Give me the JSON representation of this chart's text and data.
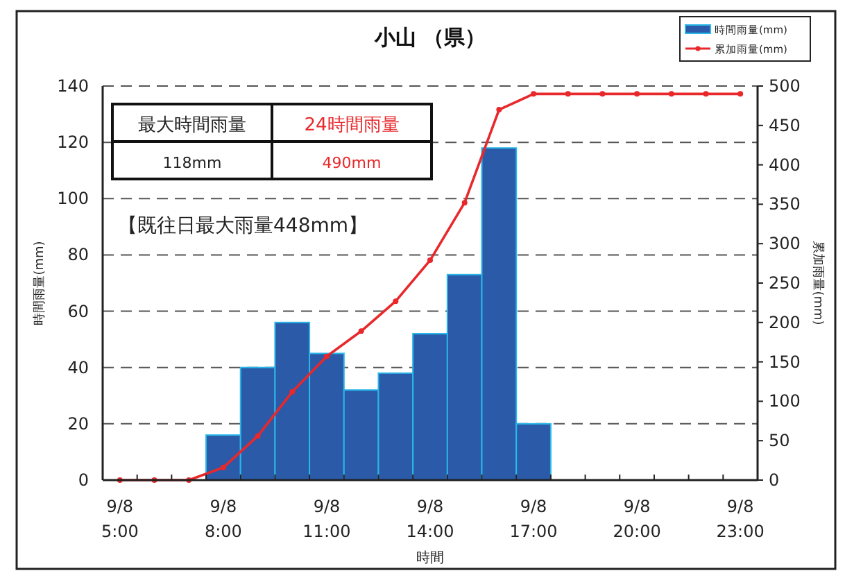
{
  "chart_data": {
    "type": "bar",
    "title": "小山 （県）",
    "xlabel": "時間",
    "ylabel": "時間雨量(mm)",
    "y2label": "累加雨量(mm)",
    "categories": [
      "9/8\n5:00",
      null,
      null,
      "9/8\n8:00",
      null,
      null,
      "9/8\n11:00",
      null,
      null,
      "9/8\n14:00",
      null,
      null,
      "9/8\n17:00",
      null,
      null,
      "9/8\n20:00",
      null,
      null,
      "9/8\n23:00"
    ],
    "series": [
      {
        "name": "時間雨量(mm)",
        "color": "#2b5aa8",
        "values": [
          0,
          0,
          0,
          16,
          40,
          56,
          45,
          32,
          38,
          52,
          73,
          118,
          20,
          0,
          0,
          0,
          0,
          0,
          0
        ]
      },
      {
        "name": "累加雨量(mm)",
        "type": "line",
        "axis": "y2",
        "color": "#e8282b",
        "marker": "circle",
        "values": [
          0,
          0,
          0,
          16,
          56,
          112,
          157,
          189,
          227,
          279,
          352,
          470,
          490,
          490,
          490,
          490,
          490,
          490,
          490
        ]
      }
    ],
    "ylim": [
      0,
      140
    ],
    "yticks": [
      0,
      20,
      40,
      60,
      80,
      100,
      120,
      140
    ],
    "y2lim": [
      0,
      500
    ],
    "y2ticks": [
      0,
      50,
      100,
      150,
      200,
      250,
      300,
      350,
      400,
      450,
      500
    ],
    "grid": "y",
    "legend": "top right",
    "annotations": [
      "最大時間雨量",
      "24時間雨量",
      "118mm",
      "490mm",
      "【既往日最大雨量448mm】"
    ]
  }
}
